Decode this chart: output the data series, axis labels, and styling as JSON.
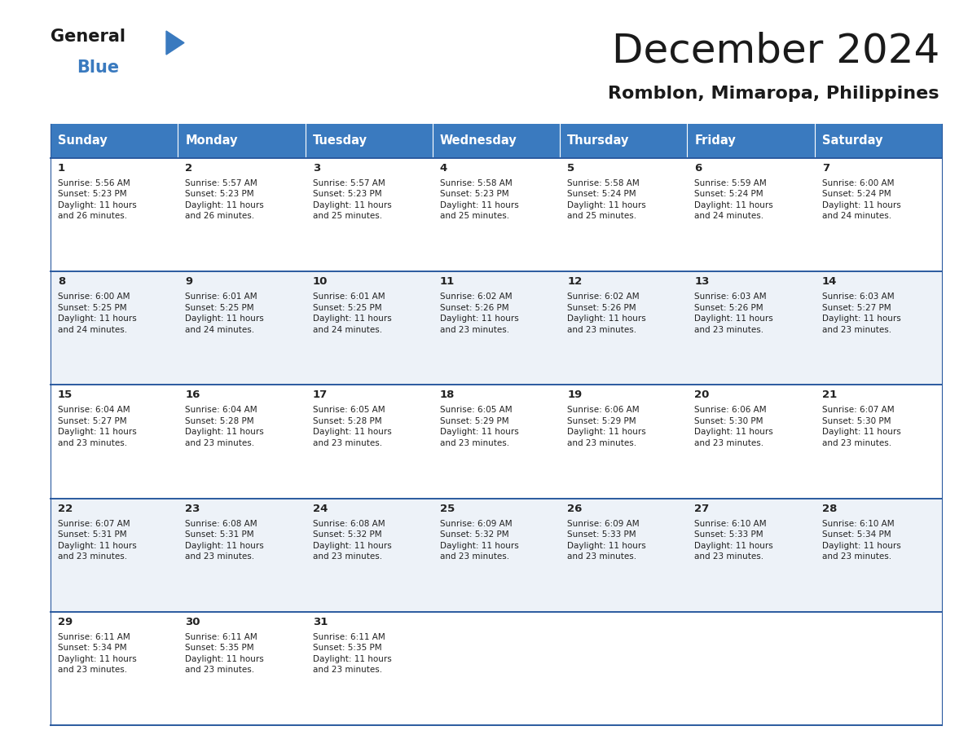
{
  "title": "December 2024",
  "subtitle": "Romblon, Mimaropa, Philippines",
  "header_color": "#3a7abf",
  "header_text_color": "#ffffff",
  "border_color": "#2a5a9f",
  "days_of_week": [
    "Sunday",
    "Monday",
    "Tuesday",
    "Wednesday",
    "Thursday",
    "Friday",
    "Saturday"
  ],
  "calendar": [
    [
      {
        "day": 1,
        "sunrise": "5:56 AM",
        "sunset": "5:23 PM",
        "daylight": "11 hours and 26 minutes."
      },
      {
        "day": 2,
        "sunrise": "5:57 AM",
        "sunset": "5:23 PM",
        "daylight": "11 hours and 26 minutes."
      },
      {
        "day": 3,
        "sunrise": "5:57 AM",
        "sunset": "5:23 PM",
        "daylight": "11 hours and 25 minutes."
      },
      {
        "day": 4,
        "sunrise": "5:58 AM",
        "sunset": "5:23 PM",
        "daylight": "11 hours and 25 minutes."
      },
      {
        "day": 5,
        "sunrise": "5:58 AM",
        "sunset": "5:24 PM",
        "daylight": "11 hours and 25 minutes."
      },
      {
        "day": 6,
        "sunrise": "5:59 AM",
        "sunset": "5:24 PM",
        "daylight": "11 hours and 24 minutes."
      },
      {
        "day": 7,
        "sunrise": "6:00 AM",
        "sunset": "5:24 PM",
        "daylight": "11 hours and 24 minutes."
      }
    ],
    [
      {
        "day": 8,
        "sunrise": "6:00 AM",
        "sunset": "5:25 PM",
        "daylight": "11 hours and 24 minutes."
      },
      {
        "day": 9,
        "sunrise": "6:01 AM",
        "sunset": "5:25 PM",
        "daylight": "11 hours and 24 minutes."
      },
      {
        "day": 10,
        "sunrise": "6:01 AM",
        "sunset": "5:25 PM",
        "daylight": "11 hours and 24 minutes."
      },
      {
        "day": 11,
        "sunrise": "6:02 AM",
        "sunset": "5:26 PM",
        "daylight": "11 hours and 23 minutes."
      },
      {
        "day": 12,
        "sunrise": "6:02 AM",
        "sunset": "5:26 PM",
        "daylight": "11 hours and 23 minutes."
      },
      {
        "day": 13,
        "sunrise": "6:03 AM",
        "sunset": "5:26 PM",
        "daylight": "11 hours and 23 minutes."
      },
      {
        "day": 14,
        "sunrise": "6:03 AM",
        "sunset": "5:27 PM",
        "daylight": "11 hours and 23 minutes."
      }
    ],
    [
      {
        "day": 15,
        "sunrise": "6:04 AM",
        "sunset": "5:27 PM",
        "daylight": "11 hours and 23 minutes."
      },
      {
        "day": 16,
        "sunrise": "6:04 AM",
        "sunset": "5:28 PM",
        "daylight": "11 hours and 23 minutes."
      },
      {
        "day": 17,
        "sunrise": "6:05 AM",
        "sunset": "5:28 PM",
        "daylight": "11 hours and 23 minutes."
      },
      {
        "day": 18,
        "sunrise": "6:05 AM",
        "sunset": "5:29 PM",
        "daylight": "11 hours and 23 minutes."
      },
      {
        "day": 19,
        "sunrise": "6:06 AM",
        "sunset": "5:29 PM",
        "daylight": "11 hours and 23 minutes."
      },
      {
        "day": 20,
        "sunrise": "6:06 AM",
        "sunset": "5:30 PM",
        "daylight": "11 hours and 23 minutes."
      },
      {
        "day": 21,
        "sunrise": "6:07 AM",
        "sunset": "5:30 PM",
        "daylight": "11 hours and 23 minutes."
      }
    ],
    [
      {
        "day": 22,
        "sunrise": "6:07 AM",
        "sunset": "5:31 PM",
        "daylight": "11 hours and 23 minutes."
      },
      {
        "day": 23,
        "sunrise": "6:08 AM",
        "sunset": "5:31 PM",
        "daylight": "11 hours and 23 minutes."
      },
      {
        "day": 24,
        "sunrise": "6:08 AM",
        "sunset": "5:32 PM",
        "daylight": "11 hours and 23 minutes."
      },
      {
        "day": 25,
        "sunrise": "6:09 AM",
        "sunset": "5:32 PM",
        "daylight": "11 hours and 23 minutes."
      },
      {
        "day": 26,
        "sunrise": "6:09 AM",
        "sunset": "5:33 PM",
        "daylight": "11 hours and 23 minutes."
      },
      {
        "day": 27,
        "sunrise": "6:10 AM",
        "sunset": "5:33 PM",
        "daylight": "11 hours and 23 minutes."
      },
      {
        "day": 28,
        "sunrise": "6:10 AM",
        "sunset": "5:34 PM",
        "daylight": "11 hours and 23 minutes."
      }
    ],
    [
      {
        "day": 29,
        "sunrise": "6:11 AM",
        "sunset": "5:34 PM",
        "daylight": "11 hours and 23 minutes."
      },
      {
        "day": 30,
        "sunrise": "6:11 AM",
        "sunset": "5:35 PM",
        "daylight": "11 hours and 23 minutes."
      },
      {
        "day": 31,
        "sunrise": "6:11 AM",
        "sunset": "5:35 PM",
        "daylight": "11 hours and 23 minutes."
      },
      null,
      null,
      null,
      null
    ]
  ],
  "figwidth": 11.88,
  "figheight": 9.18,
  "dpi": 100
}
